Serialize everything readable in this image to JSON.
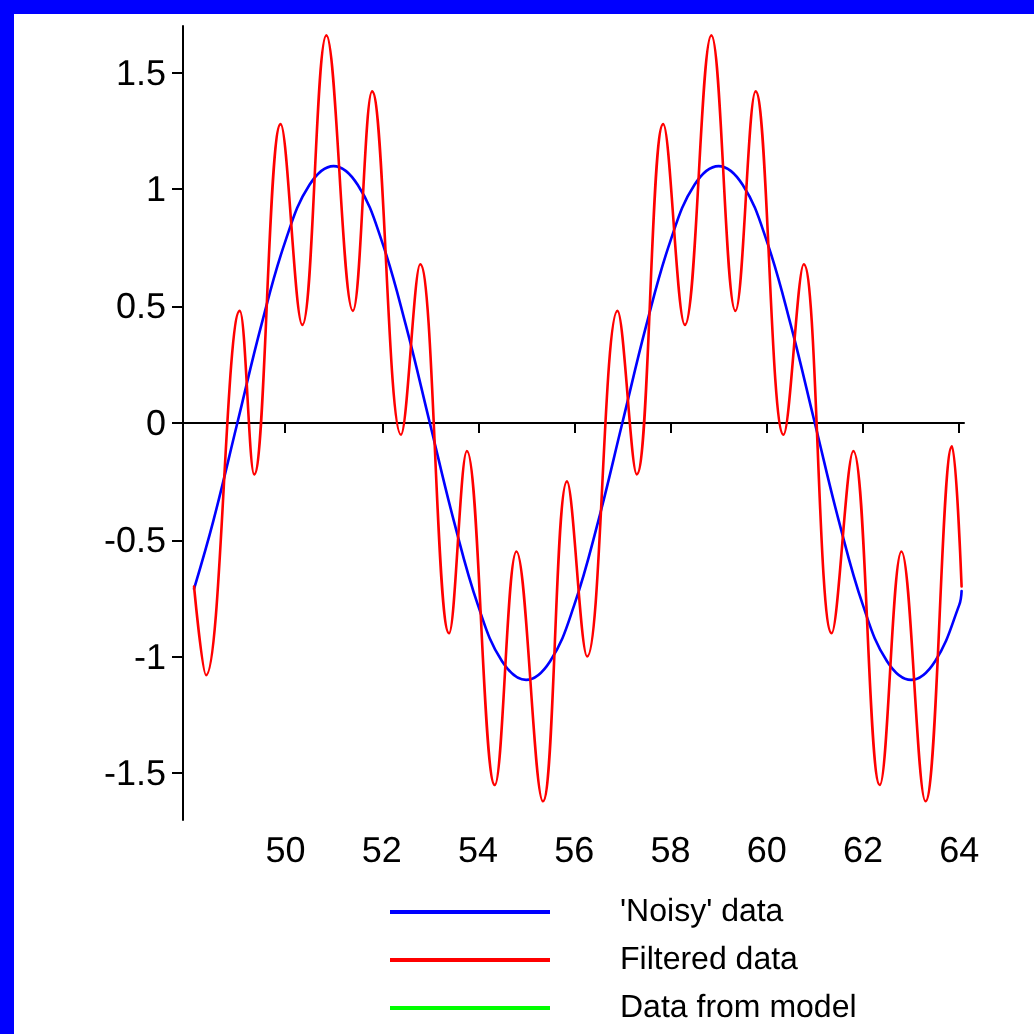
{
  "chart_data": {
    "type": "line",
    "series": [
      {
        "name": "'Noisy' data",
        "color": "#0000ff",
        "x": [
          48.1,
          48.5,
          49,
          49.5,
          50,
          50.5,
          51,
          51.5,
          52,
          52.5,
          53,
          53.5,
          54,
          54.5,
          55,
          55.5,
          56,
          56.5,
          57,
          57.5,
          58,
          58.5,
          59,
          59.5,
          60,
          60.5,
          61,
          61.5,
          62,
          62.5,
          63,
          63.5,
          64,
          64.05
        ],
        "values": [
          -0.71,
          -0.42,
          0,
          0.42,
          0.78,
          1.02,
          1.1,
          1.02,
          0.78,
          0.42,
          0,
          -0.42,
          -0.78,
          -1.02,
          -1.1,
          -1.02,
          -0.78,
          -0.42,
          0,
          0.42,
          0.78,
          1.02,
          1.1,
          1.02,
          0.78,
          0.42,
          0,
          -0.42,
          -0.78,
          -1.02,
          -1.1,
          -1.02,
          -0.78,
          -0.72
        ]
      },
      {
        "name": "Filtered data",
        "color": "#ff0000",
        "x": [
          48.1,
          48.35,
          49.05,
          49.35,
          49.9,
          50.35,
          50.85,
          51.4,
          51.8,
          52.4,
          52.8,
          53.4,
          53.77,
          54.35,
          54.8,
          55.35,
          55.85,
          56.27,
          56.9,
          57.3,
          57.85,
          58.3,
          58.85,
          59.35,
          59.77,
          60.35,
          60.77,
          61.35,
          61.8,
          62.35,
          62.8,
          63.3,
          63.85,
          64.05
        ],
        "values": [
          -0.7,
          -1.08,
          0.48,
          -0.22,
          1.28,
          0.42,
          1.66,
          0.48,
          1.42,
          -0.05,
          0.68,
          -0.9,
          -0.12,
          -1.55,
          -0.55,
          -1.62,
          -0.25,
          -1.0,
          0.48,
          -0.22,
          1.28,
          0.42,
          1.66,
          0.48,
          1.42,
          -0.05,
          0.68,
          -0.9,
          -0.12,
          -1.55,
          -0.55,
          -1.62,
          -0.1,
          -0.7
        ]
      },
      {
        "name": "Data from model",
        "color": "#00ff00"
      }
    ],
    "xlim": [
      47.85,
      64.1
    ],
    "xticks": [
      50,
      52,
      54,
      56,
      58,
      60,
      62,
      64
    ],
    "ylim": [
      -1.7,
      1.7
    ],
    "yticks": [
      -1.5,
      -1,
      -0.5,
      0,
      0.5,
      1,
      1.5
    ],
    "legend": "bottom",
    "marker": "none",
    "line_style": "solid"
  }
}
